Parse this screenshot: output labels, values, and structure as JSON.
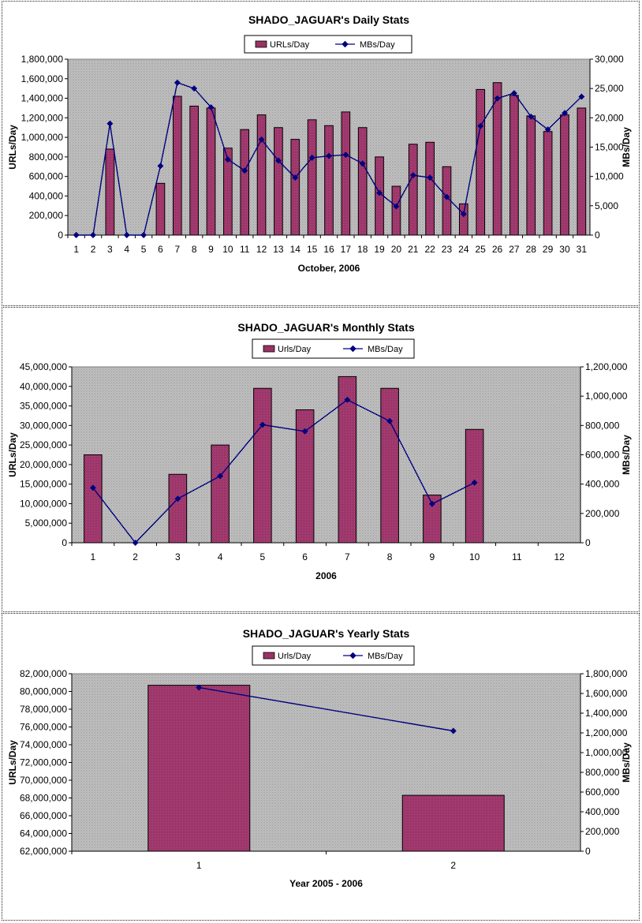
{
  "colors": {
    "bar": "#993366",
    "line": "#000080",
    "plot_bg": "#c8c8c8"
  },
  "chart_data": [
    {
      "type": "bar",
      "title": "SHADO_JAGUAR's Daily Stats",
      "xlabel": "October, 2006",
      "ylabel": "URLs/Day",
      "y2label": "MBs/Day",
      "legend": {
        "placement": "top",
        "bar_label": "URLs/Day",
        "line_label": "MBs/Day"
      },
      "categories": [
        "1",
        "2",
        "3",
        "4",
        "5",
        "6",
        "7",
        "8",
        "9",
        "10",
        "11",
        "12",
        "13",
        "14",
        "15",
        "16",
        "17",
        "18",
        "19",
        "20",
        "21",
        "22",
        "23",
        "24",
        "25",
        "26",
        "27",
        "28",
        "29",
        "30",
        "31"
      ],
      "series": [
        {
          "name": "URLs/Day",
          "axis": "left",
          "kind": "bar",
          "values": [
            0,
            0,
            880000,
            0,
            0,
            530000,
            1420000,
            1320000,
            1300000,
            890000,
            1080000,
            1230000,
            1100000,
            980000,
            1180000,
            1120000,
            1260000,
            1100000,
            800000,
            500000,
            930000,
            950000,
            700000,
            320000,
            1490000,
            1560000,
            1430000,
            1220000,
            1060000,
            1230000,
            1300000
          ]
        },
        {
          "name": "MBs/Day",
          "axis": "right",
          "kind": "line",
          "values": [
            0,
            0,
            19000,
            0,
            0,
            11800,
            26000,
            25000,
            21800,
            12900,
            11000,
            16300,
            12700,
            9800,
            13200,
            13500,
            13700,
            12200,
            7200,
            4900,
            10200,
            9800,
            6500,
            3600,
            18600,
            23300,
            24200,
            20200,
            18000,
            20800,
            23600
          ]
        }
      ],
      "ylim": [
        0,
        1800000
      ],
      "yticks": [
        "0",
        "200,000",
        "400,000",
        "600,000",
        "800,000",
        "1,000,000",
        "1,200,000",
        "1,400,000",
        "1,600,000",
        "1,800,000"
      ],
      "y2lim": [
        0,
        30000
      ],
      "y2ticks": [
        "0",
        "5,000",
        "10,000",
        "15,000",
        "20,000",
        "25,000",
        "30,000"
      ]
    },
    {
      "type": "bar",
      "title": "SHADO_JAGUAR's Monthly Stats",
      "xlabel": "2006",
      "ylabel": "URLs/Day",
      "y2label": "MBs/Day",
      "legend": {
        "placement": "top",
        "bar_label": "Urls/Day",
        "line_label": "MBs/Day"
      },
      "categories": [
        "1",
        "2",
        "3",
        "4",
        "5",
        "6",
        "7",
        "8",
        "9",
        "10",
        "11",
        "12"
      ],
      "series": [
        {
          "name": "Urls/Day",
          "axis": "left",
          "kind": "bar",
          "values": [
            22500000,
            0,
            17500000,
            25000000,
            39500000,
            34000000,
            42500000,
            39500000,
            12200000,
            29000000,
            null,
            null
          ]
        },
        {
          "name": "MBs/Day",
          "axis": "right",
          "kind": "line",
          "values": [
            375000,
            0,
            300000,
            455000,
            805000,
            760000,
            975000,
            830000,
            265000,
            410000,
            null,
            null
          ]
        }
      ],
      "ylim": [
        0,
        45000000
      ],
      "yticks": [
        "0",
        "5,000,000",
        "10,000,000",
        "15,000,000",
        "20,000,000",
        "25,000,000",
        "30,000,000",
        "35,000,000",
        "40,000,000",
        "45,000,000"
      ],
      "y2lim": [
        0,
        1200000
      ],
      "y2ticks": [
        "0",
        "200,000",
        "400,000",
        "600,000",
        "800,000",
        "1,000,000",
        "1,200,000"
      ]
    },
    {
      "type": "bar",
      "title": "SHADO_JAGUAR's Yearly Stats",
      "xlabel": "Year 2005 - 2006",
      "ylabel": "URLs/Day",
      "y2label": "MBs/Day",
      "legend": {
        "placement": "top",
        "bar_label": "Urls/Day",
        "line_label": "MBs/Day"
      },
      "categories": [
        "1",
        "2"
      ],
      "series": [
        {
          "name": "Urls/Day",
          "axis": "left",
          "kind": "bar",
          "values": [
            80700000,
            68300000
          ]
        },
        {
          "name": "MBs/Day",
          "axis": "right",
          "kind": "line",
          "values": [
            1660000,
            1220000
          ]
        }
      ],
      "ylim": [
        62000000,
        82000000
      ],
      "yticks": [
        "62,000,000",
        "64,000,000",
        "66,000,000",
        "68,000,000",
        "70,000,000",
        "72,000,000",
        "74,000,000",
        "76,000,000",
        "78,000,000",
        "80,000,000",
        "82,000,000"
      ],
      "y2lim": [
        0,
        1800000
      ],
      "y2ticks": [
        "0",
        "200,000",
        "400,000",
        "600,000",
        "800,000",
        "1,000,000",
        "1,200,000",
        "1,400,000",
        "1,600,000",
        "1,800,000"
      ]
    }
  ]
}
